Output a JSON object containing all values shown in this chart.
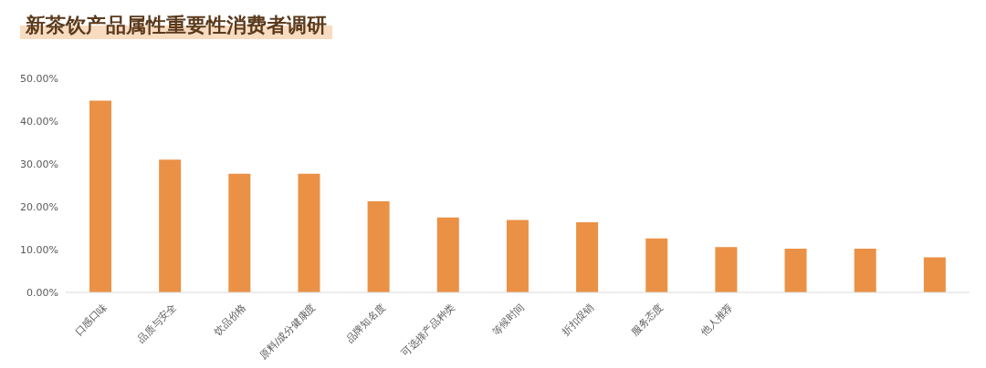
{
  "chart_data": {
    "type": "bar",
    "title": "新茶饮产品属性重要性消费者调研",
    "categories": [
      "口感口味",
      "品质与安全",
      "饮品价格",
      "原料/成分健康度",
      "品牌知名度",
      "可选择产品种类",
      "等候时间",
      "折扣促销",
      "服务态度",
      "他人推荐",
      null,
      null,
      null
    ],
    "values": [
      44.8,
      31.0,
      27.7,
      27.7,
      21.3,
      17.5,
      16.9,
      16.4,
      12.6,
      10.6,
      10.2,
      10.2,
      8.2
    ],
    "color": "#ea9146",
    "ylim": [
      0,
      50
    ],
    "yticks": [
      {
        "value": 0,
        "label": "0.00%"
      },
      {
        "value": 10,
        "label": "10.00%"
      },
      {
        "value": 20,
        "label": "20.00%"
      },
      {
        "value": 30,
        "label": "30.00%"
      },
      {
        "value": 40,
        "label": "40.00%"
      },
      {
        "value": 50,
        "label": "50.00%"
      }
    ]
  }
}
